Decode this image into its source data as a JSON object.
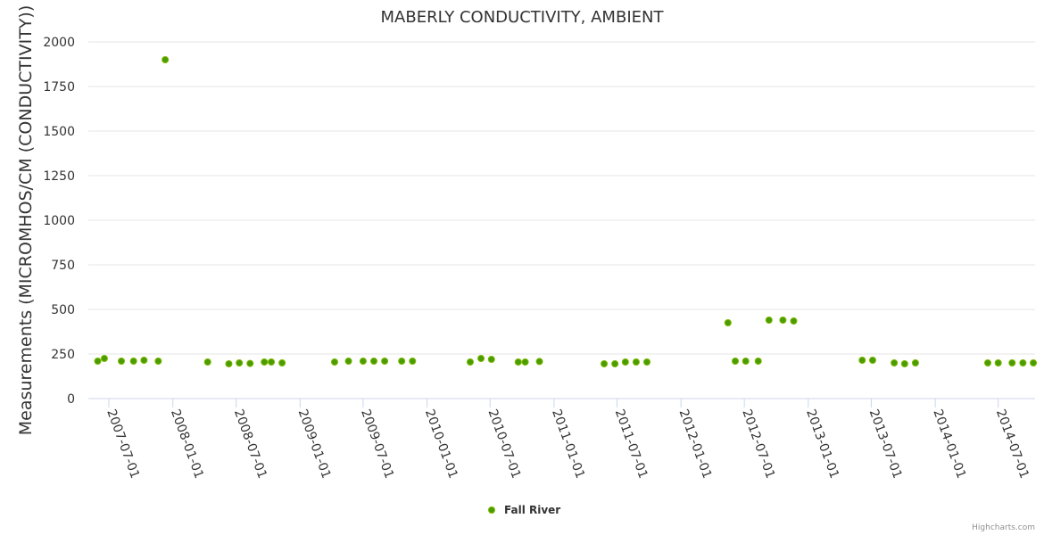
{
  "chart_data": {
    "type": "scatter",
    "title": "MABERLY CONDUCTIVITY, AMBIENT",
    "xlabel": "",
    "ylabel": "Measurements (MICROMHOS/CM (CONDUCTIVITY))",
    "ylim": [
      0,
      2000
    ],
    "yticks": [
      "0",
      "250",
      "500",
      "750",
      "1000",
      "1250",
      "1500",
      "1750",
      "2000"
    ],
    "xticks": [
      "2007-07-01",
      "2008-01-01",
      "2008-07-01",
      "2009-01-01",
      "2009-07-01",
      "2010-01-01",
      "2010-07-01",
      "2011-01-01",
      "2011-07-01",
      "2012-01-01",
      "2012-07-01",
      "2013-01-01",
      "2013-07-01",
      "2014-01-01",
      "2014-07-01"
    ],
    "xlim": [
      "2007-05-03",
      "2014-10-15"
    ],
    "grid": true,
    "legend": "bottom-center",
    "series": [
      {
        "name": "Fall River",
        "color": "#4a9c00",
        "points": [
          [
            "2007-05-30",
            210
          ],
          [
            "2007-06-18",
            225
          ],
          [
            "2007-08-06",
            210
          ],
          [
            "2007-09-10",
            210
          ],
          [
            "2007-10-10",
            215
          ],
          [
            "2007-11-20",
            210
          ],
          [
            "2007-12-10",
            1900
          ],
          [
            "2008-04-10",
            205
          ],
          [
            "2008-06-10",
            195
          ],
          [
            "2008-07-10",
            200
          ],
          [
            "2008-08-10",
            197
          ],
          [
            "2008-09-20",
            205
          ],
          [
            "2008-10-10",
            205
          ],
          [
            "2008-11-10",
            200
          ],
          [
            "2009-04-10",
            205
          ],
          [
            "2009-05-20",
            210
          ],
          [
            "2009-07-01",
            210
          ],
          [
            "2009-08-01",
            210
          ],
          [
            "2009-09-01",
            210
          ],
          [
            "2009-10-20",
            210
          ],
          [
            "2009-11-20",
            210
          ],
          [
            "2010-05-05",
            205
          ],
          [
            "2010-06-05",
            225
          ],
          [
            "2010-07-05",
            220
          ],
          [
            "2010-09-20",
            205
          ],
          [
            "2010-10-10",
            205
          ],
          [
            "2010-11-20",
            208
          ],
          [
            "2011-05-25",
            195
          ],
          [
            "2011-06-25",
            195
          ],
          [
            "2011-07-25",
            205
          ],
          [
            "2011-08-25",
            205
          ],
          [
            "2011-09-25",
            205
          ],
          [
            "2012-05-15",
            425
          ],
          [
            "2012-06-05",
            210
          ],
          [
            "2012-07-05",
            210
          ],
          [
            "2012-08-10",
            210
          ],
          [
            "2012-09-10",
            440
          ],
          [
            "2012-10-20",
            440
          ],
          [
            "2012-11-20",
            435
          ],
          [
            "2013-06-05",
            215
          ],
          [
            "2013-07-05",
            215
          ],
          [
            "2013-09-05",
            200
          ],
          [
            "2013-10-05",
            195
          ],
          [
            "2013-11-05",
            200
          ],
          [
            "2014-06-01",
            200
          ],
          [
            "2014-07-01",
            200
          ],
          [
            "2014-08-10",
            200
          ],
          [
            "2014-09-10",
            200
          ],
          [
            "2014-10-10",
            200
          ]
        ]
      }
    ]
  },
  "credits": "Highcharts.com"
}
